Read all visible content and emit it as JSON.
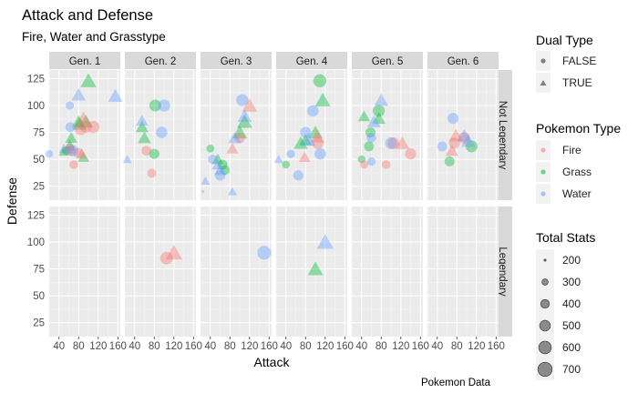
{
  "chart_data": {
    "type": "scatter",
    "title": "Attack and Defense",
    "subtitle": "Fire, Water and Grasstype",
    "xlabel": "Attack",
    "ylabel": "Defense",
    "caption": "Pokemon Data",
    "xlim": [
      20,
      165
    ],
    "ylim": [
      12,
      133
    ],
    "x_ticks": [
      40,
      80,
      120,
      160
    ],
    "x_tick_labels": [
      "40",
      "80",
      "120",
      "160"
    ],
    "y_ticks": [
      25,
      50,
      75,
      100,
      125
    ],
    "y_tick_labels": [
      "25",
      "50",
      "75",
      "100",
      "125"
    ],
    "columns": [
      "Gen. 1",
      "Gen. 2",
      "Gen. 3",
      "Gen. 4",
      "Gen. 5",
      "Gen. 6"
    ],
    "rows": [
      "Not Legendary",
      "Legendary"
    ],
    "colors": {
      "Fire": "#f8766d",
      "Grass": "#00ba38",
      "Water": "#619cff"
    },
    "point_alpha": 0.4,
    "size_scale": {
      "min_stat": 200,
      "max_stat": 720
    },
    "legends": {
      "dual_type": {
        "title": "Dual Type",
        "items": [
          "FALSE",
          "TRUE"
        ]
      },
      "pokemon_type": {
        "title": "Pokemon Type",
        "items": [
          "Fire",
          "Grass",
          "Water"
        ]
      },
      "total_stats": {
        "title": "Total Stats",
        "items": [
          "200",
          "300",
          "400",
          "500",
          "600",
          "700"
        ]
      }
    },
    "points": [
      {
        "gen": 1,
        "leg": false,
        "type": "Grass",
        "dual": true,
        "x": 82,
        "y": 83,
        "total": 525
      },
      {
        "gen": 1,
        "leg": false,
        "type": "Grass",
        "dual": true,
        "x": 100,
        "y": 123,
        "total": 625
      },
      {
        "gen": 1,
        "leg": false,
        "type": "Grass",
        "dual": true,
        "x": 62,
        "y": 63,
        "total": 405
      },
      {
        "gen": 1,
        "leg": false,
        "type": "Grass",
        "dual": true,
        "x": 49,
        "y": 57,
        "total": 318
      },
      {
        "gen": 1,
        "leg": false,
        "type": "Grass",
        "dual": true,
        "x": 65,
        "y": 70,
        "total": 420
      },
      {
        "gen": 1,
        "leg": false,
        "type": "Grass",
        "dual": true,
        "x": 80,
        "y": 85,
        "total": 490
      },
      {
        "gen": 1,
        "leg": false,
        "type": "Grass",
        "dual": true,
        "x": 90,
        "y": 52,
        "total": 390
      },
      {
        "gen": 1,
        "leg": false,
        "type": "Grass",
        "dual": true,
        "x": 95,
        "y": 85,
        "total": 520
      },
      {
        "gen": 1,
        "leg": false,
        "type": "Grass",
        "dual": false,
        "x": 55,
        "y": 58,
        "total": 350
      },
      {
        "gen": 1,
        "leg": false,
        "type": "Fire",
        "dual": false,
        "x": 110,
        "y": 80,
        "total": 555
      },
      {
        "gen": 1,
        "leg": false,
        "type": "Fire",
        "dual": false,
        "x": 95,
        "y": 80,
        "total": 520
      },
      {
        "gen": 1,
        "leg": false,
        "type": "Fire",
        "dual": false,
        "x": 84,
        "y": 78,
        "total": 534
      },
      {
        "gen": 1,
        "leg": false,
        "type": "Fire",
        "dual": false,
        "x": 62,
        "y": 60,
        "total": 400
      },
      {
        "gen": 1,
        "leg": false,
        "type": "Fire",
        "dual": false,
        "x": 64,
        "y": 58,
        "total": 405
      },
      {
        "gen": 1,
        "leg": false,
        "type": "Fire",
        "dual": false,
        "x": 70,
        "y": 45,
        "total": 350
      },
      {
        "gen": 1,
        "leg": false,
        "type": "Fire",
        "dual": false,
        "x": 80,
        "y": 56,
        "total": 400
      },
      {
        "gen": 1,
        "leg": false,
        "type": "Fire",
        "dual": true,
        "x": 90,
        "y": 88,
        "total": 534
      },
      {
        "gen": 1,
        "leg": false,
        "type": "Fire",
        "dual": true,
        "x": 86,
        "y": 55,
        "total": 390
      },
      {
        "gen": 1,
        "leg": false,
        "type": "Water",
        "dual": false,
        "x": 63,
        "y": 80,
        "total": 405
      },
      {
        "gen": 1,
        "leg": false,
        "type": "Water",
        "dual": false,
        "x": 62,
        "y": 100,
        "total": 320
      },
      {
        "gen": 1,
        "leg": false,
        "type": "Water",
        "dual": false,
        "x": 68,
        "y": 58,
        "total": 500
      },
      {
        "gen": 1,
        "leg": false,
        "type": "Water",
        "dual": true,
        "x": 80,
        "y": 110,
        "total": 510
      },
      {
        "gen": 1,
        "leg": false,
        "type": "Water",
        "dual": true,
        "x": 155,
        "y": 109,
        "total": 540
      },
      {
        "gen": 1,
        "leg": false,
        "type": "Water",
        "dual": true,
        "x": 50,
        "y": 60,
        "total": 340
      },
      {
        "gen": 1,
        "leg": false,
        "type": "Water",
        "dual": false,
        "x": 20,
        "y": 55,
        "total": 300
      },
      {
        "gen": 2,
        "leg": false,
        "type": "Grass",
        "dual": false,
        "x": 82,
        "y": 100,
        "total": 525
      },
      {
        "gen": 2,
        "leg": false,
        "type": "Grass",
        "dual": false,
        "x": 80,
        "y": 55,
        "total": 420
      },
      {
        "gen": 2,
        "leg": false,
        "type": "Grass",
        "dual": true,
        "x": 55,
        "y": 80,
        "total": 460
      },
      {
        "gen": 2,
        "leg": false,
        "type": "Grass",
        "dual": true,
        "x": 60,
        "y": 70,
        "total": 470
      },
      {
        "gen": 2,
        "leg": false,
        "type": "Fire",
        "dual": false,
        "x": 64,
        "y": 58,
        "total": 405
      },
      {
        "gen": 2,
        "leg": false,
        "type": "Fire",
        "dual": false,
        "x": 75,
        "y": 37,
        "total": 360
      },
      {
        "gen": 2,
        "leg": false,
        "type": "Water",
        "dual": false,
        "x": 100,
        "y": 100,
        "total": 530
      },
      {
        "gen": 2,
        "leg": false,
        "type": "Water",
        "dual": false,
        "x": 95,
        "y": 75,
        "total": 500
      },
      {
        "gen": 2,
        "leg": false,
        "type": "Water",
        "dual": true,
        "x": 55,
        "y": 86,
        "total": 420
      },
      {
        "gen": 2,
        "leg": false,
        "type": "Water",
        "dual": true,
        "x": 25,
        "y": 50,
        "total": 300
      },
      {
        "gen": 2,
        "leg": true,
        "type": "Fire",
        "dual": false,
        "x": 105,
        "y": 85,
        "total": 580
      },
      {
        "gen": 2,
        "leg": true,
        "type": "Fire",
        "dual": true,
        "x": 120,
        "y": 90,
        "total": 680
      },
      {
        "gen": 3,
        "leg": false,
        "type": "Grass",
        "dual": false,
        "x": 40,
        "y": 60,
        "total": 310
      },
      {
        "gen": 3,
        "leg": false,
        "type": "Grass",
        "dual": false,
        "x": 65,
        "y": 45,
        "total": 405
      },
      {
        "gen": 3,
        "leg": false,
        "type": "Grass",
        "dual": false,
        "x": 70,
        "y": 40,
        "total": 380
      },
      {
        "gen": 3,
        "leg": false,
        "type": "Grass",
        "dual": true,
        "x": 100,
        "y": 75,
        "total": 560
      },
      {
        "gen": 3,
        "leg": false,
        "type": "Grass",
        "dual": true,
        "x": 110,
        "y": 85,
        "total": 580
      },
      {
        "gen": 3,
        "leg": false,
        "type": "Grass",
        "dual": true,
        "x": 55,
        "y": 50,
        "total": 405
      },
      {
        "gen": 3,
        "leg": false,
        "type": "Fire",
        "dual": true,
        "x": 120,
        "y": 100,
        "total": 575
      },
      {
        "gen": 3,
        "leg": false,
        "type": "Fire",
        "dual": true,
        "x": 85,
        "y": 60,
        "total": 405
      },
      {
        "gen": 3,
        "leg": false,
        "type": "Fire",
        "dual": false,
        "x": 100,
        "y": 70,
        "total": 450
      },
      {
        "gen": 3,
        "leg": false,
        "type": "Water",
        "dual": false,
        "x": 105,
        "y": 105,
        "total": 535
      },
      {
        "gen": 3,
        "leg": false,
        "type": "Water",
        "dual": true,
        "x": 110,
        "y": 90,
        "total": 520
      },
      {
        "gen": 3,
        "leg": false,
        "type": "Water",
        "dual": true,
        "x": 90,
        "y": 70,
        "total": 470
      },
      {
        "gen": 3,
        "leg": false,
        "type": "Water",
        "dual": true,
        "x": 60,
        "y": 40,
        "total": 420
      },
      {
        "gen": 3,
        "leg": false,
        "type": "Water",
        "dual": true,
        "x": 55,
        "y": 45,
        "total": 400
      },
      {
        "gen": 3,
        "leg": false,
        "type": "Water",
        "dual": true,
        "x": 85,
        "y": 20,
        "total": 300
      },
      {
        "gen": 3,
        "leg": false,
        "type": "Water",
        "dual": true,
        "x": 30,
        "y": 30,
        "total": 300
      },
      {
        "gen": 3,
        "leg": false,
        "type": "Water",
        "dual": false,
        "x": 60,
        "y": 35,
        "total": 430
      },
      {
        "gen": 3,
        "leg": false,
        "type": "Water",
        "dual": false,
        "x": 45,
        "y": 50,
        "total": 380
      },
      {
        "gen": 3,
        "leg": false,
        "type": "Water",
        "dual": false,
        "x": 25,
        "y": 20,
        "total": 200
      },
      {
        "gen": 3,
        "leg": true,
        "type": "Water",
        "dual": false,
        "x": 150,
        "y": 90,
        "total": 670
      },
      {
        "gen": 4,
        "leg": false,
        "type": "Grass",
        "dual": false,
        "x": 109,
        "y": 123,
        "total": 610
      },
      {
        "gen": 4,
        "leg": false,
        "type": "Grass",
        "dual": true,
        "x": 115,
        "y": 105,
        "total": 600
      },
      {
        "gen": 4,
        "leg": false,
        "type": "Grass",
        "dual": true,
        "x": 100,
        "y": 75,
        "total": 525
      },
      {
        "gen": 4,
        "leg": false,
        "type": "Grass",
        "dual": true,
        "x": 70,
        "y": 65,
        "total": 505
      },
      {
        "gen": 4,
        "leg": false,
        "type": "Grass",
        "dual": true,
        "x": 80,
        "y": 68,
        "total": 455
      },
      {
        "gen": 4,
        "leg": false,
        "type": "Grass",
        "dual": false,
        "x": 40,
        "y": 45,
        "total": 300
      },
      {
        "gen": 4,
        "leg": false,
        "type": "Fire",
        "dual": true,
        "x": 104,
        "y": 71,
        "total": 534
      },
      {
        "gen": 4,
        "leg": false,
        "type": "Fire",
        "dual": true,
        "x": 78,
        "y": 52,
        "total": 405
      },
      {
        "gen": 4,
        "leg": false,
        "type": "Fire",
        "dual": false,
        "x": 105,
        "y": 65,
        "total": 500
      },
      {
        "gen": 4,
        "leg": false,
        "type": "Water",
        "dual": false,
        "x": 95,
        "y": 95,
        "total": 500
      },
      {
        "gen": 4,
        "leg": false,
        "type": "Water",
        "dual": false,
        "x": 110,
        "y": 55,
        "total": 495
      },
      {
        "gen": 4,
        "leg": false,
        "type": "Water",
        "dual": false,
        "x": 50,
        "y": 55,
        "total": 330
      },
      {
        "gen": 4,
        "leg": false,
        "type": "Water",
        "dual": false,
        "x": 65,
        "y": 35,
        "total": 420
      },
      {
        "gen": 4,
        "leg": false,
        "type": "Water",
        "dual": true,
        "x": 86,
        "y": 68,
        "total": 530
      },
      {
        "gen": 4,
        "leg": false,
        "type": "Water",
        "dual": true,
        "x": 25,
        "y": 50,
        "total": 300
      },
      {
        "gen": 4,
        "leg": false,
        "type": "Water",
        "dual": false,
        "x": 80,
        "y": 75,
        "total": 470
      },
      {
        "gen": 4,
        "leg": true,
        "type": "Water",
        "dual": true,
        "x": 120,
        "y": 100,
        "total": 680
      },
      {
        "gen": 4,
        "leg": true,
        "type": "Grass",
        "dual": true,
        "x": 100,
        "y": 75,
        "total": 600
      },
      {
        "gen": 5,
        "leg": false,
        "type": "Grass",
        "dual": false,
        "x": 75,
        "y": 95,
        "total": 528
      },
      {
        "gen": 5,
        "leg": false,
        "type": "Grass",
        "dual": false,
        "x": 58,
        "y": 75,
        "total": 413
      },
      {
        "gen": 5,
        "leg": false,
        "type": "Grass",
        "dual": false,
        "x": 55,
        "y": 62,
        "total": 400
      },
      {
        "gen": 5,
        "leg": false,
        "type": "Grass",
        "dual": true,
        "x": 75,
        "y": 88,
        "total": 480
      },
      {
        "gen": 5,
        "leg": false,
        "type": "Grass",
        "dual": true,
        "x": 45,
        "y": 90,
        "total": 413
      },
      {
        "gen": 5,
        "leg": false,
        "type": "Grass",
        "dual": false,
        "x": 40,
        "y": 50,
        "total": 300
      },
      {
        "gen": 5,
        "leg": false,
        "type": "Fire",
        "dual": false,
        "x": 105,
        "y": 65,
        "total": 510
      },
      {
        "gen": 5,
        "leg": false,
        "type": "Fire",
        "dual": false,
        "x": 140,
        "y": 55,
        "total": 480
      },
      {
        "gen": 5,
        "leg": false,
        "type": "Fire",
        "dual": false,
        "x": 90,
        "y": 45,
        "total": 350
      },
      {
        "gen": 5,
        "leg": false,
        "type": "Fire",
        "dual": true,
        "x": 123,
        "y": 65,
        "total": 530
      },
      {
        "gen": 5,
        "leg": false,
        "type": "Fire",
        "dual": false,
        "x": 45,
        "y": 45,
        "total": 320
      },
      {
        "gen": 5,
        "leg": false,
        "type": "Water",
        "dual": false,
        "x": 100,
        "y": 65,
        "total": 528
      },
      {
        "gen": 5,
        "leg": false,
        "type": "Water",
        "dual": false,
        "x": 60,
        "y": 48,
        "total": 330
      },
      {
        "gen": 5,
        "leg": false,
        "type": "Water",
        "dual": true,
        "x": 80,
        "y": 105,
        "total": 510
      },
      {
        "gen": 5,
        "leg": false,
        "type": "Water",
        "dual": true,
        "x": 65,
        "y": 85,
        "total": 490
      },
      {
        "gen": 5,
        "leg": false,
        "type": "Water",
        "dual": false,
        "x": 60,
        "y": 70,
        "total": 390
      },
      {
        "gen": 6,
        "leg": false,
        "type": "Grass",
        "dual": false,
        "x": 110,
        "y": 62,
        "total": 530
      },
      {
        "gen": 6,
        "leg": false,
        "type": "Grass",
        "dual": false,
        "x": 65,
        "y": 48,
        "total": 405
      },
      {
        "gen": 6,
        "leg": false,
        "type": "Fire",
        "dual": true,
        "x": 78,
        "y": 72,
        "total": 534
      },
      {
        "gen": 6,
        "leg": false,
        "type": "Fire",
        "dual": true,
        "x": 70,
        "y": 58,
        "total": 450
      },
      {
        "gen": 6,
        "leg": false,
        "type": "Fire",
        "dual": false,
        "x": 75,
        "y": 65,
        "total": 480
      },
      {
        "gen": 6,
        "leg": false,
        "type": "Fire",
        "dual": false,
        "x": 95,
        "y": 70,
        "total": 505
      },
      {
        "gen": 6,
        "leg": false,
        "type": "Water",
        "dual": false,
        "x": 72,
        "y": 88,
        "total": 470
      },
      {
        "gen": 6,
        "leg": false,
        "type": "Water",
        "dual": false,
        "x": 50,
        "y": 62,
        "total": 405
      },
      {
        "gen": 6,
        "leg": false,
        "type": "Water",
        "dual": true,
        "x": 103,
        "y": 67,
        "total": 530
      },
      {
        "gen": 6,
        "leg": false,
        "type": "Water",
        "dual": true,
        "x": 95,
        "y": 72,
        "total": 500
      }
    ]
  }
}
